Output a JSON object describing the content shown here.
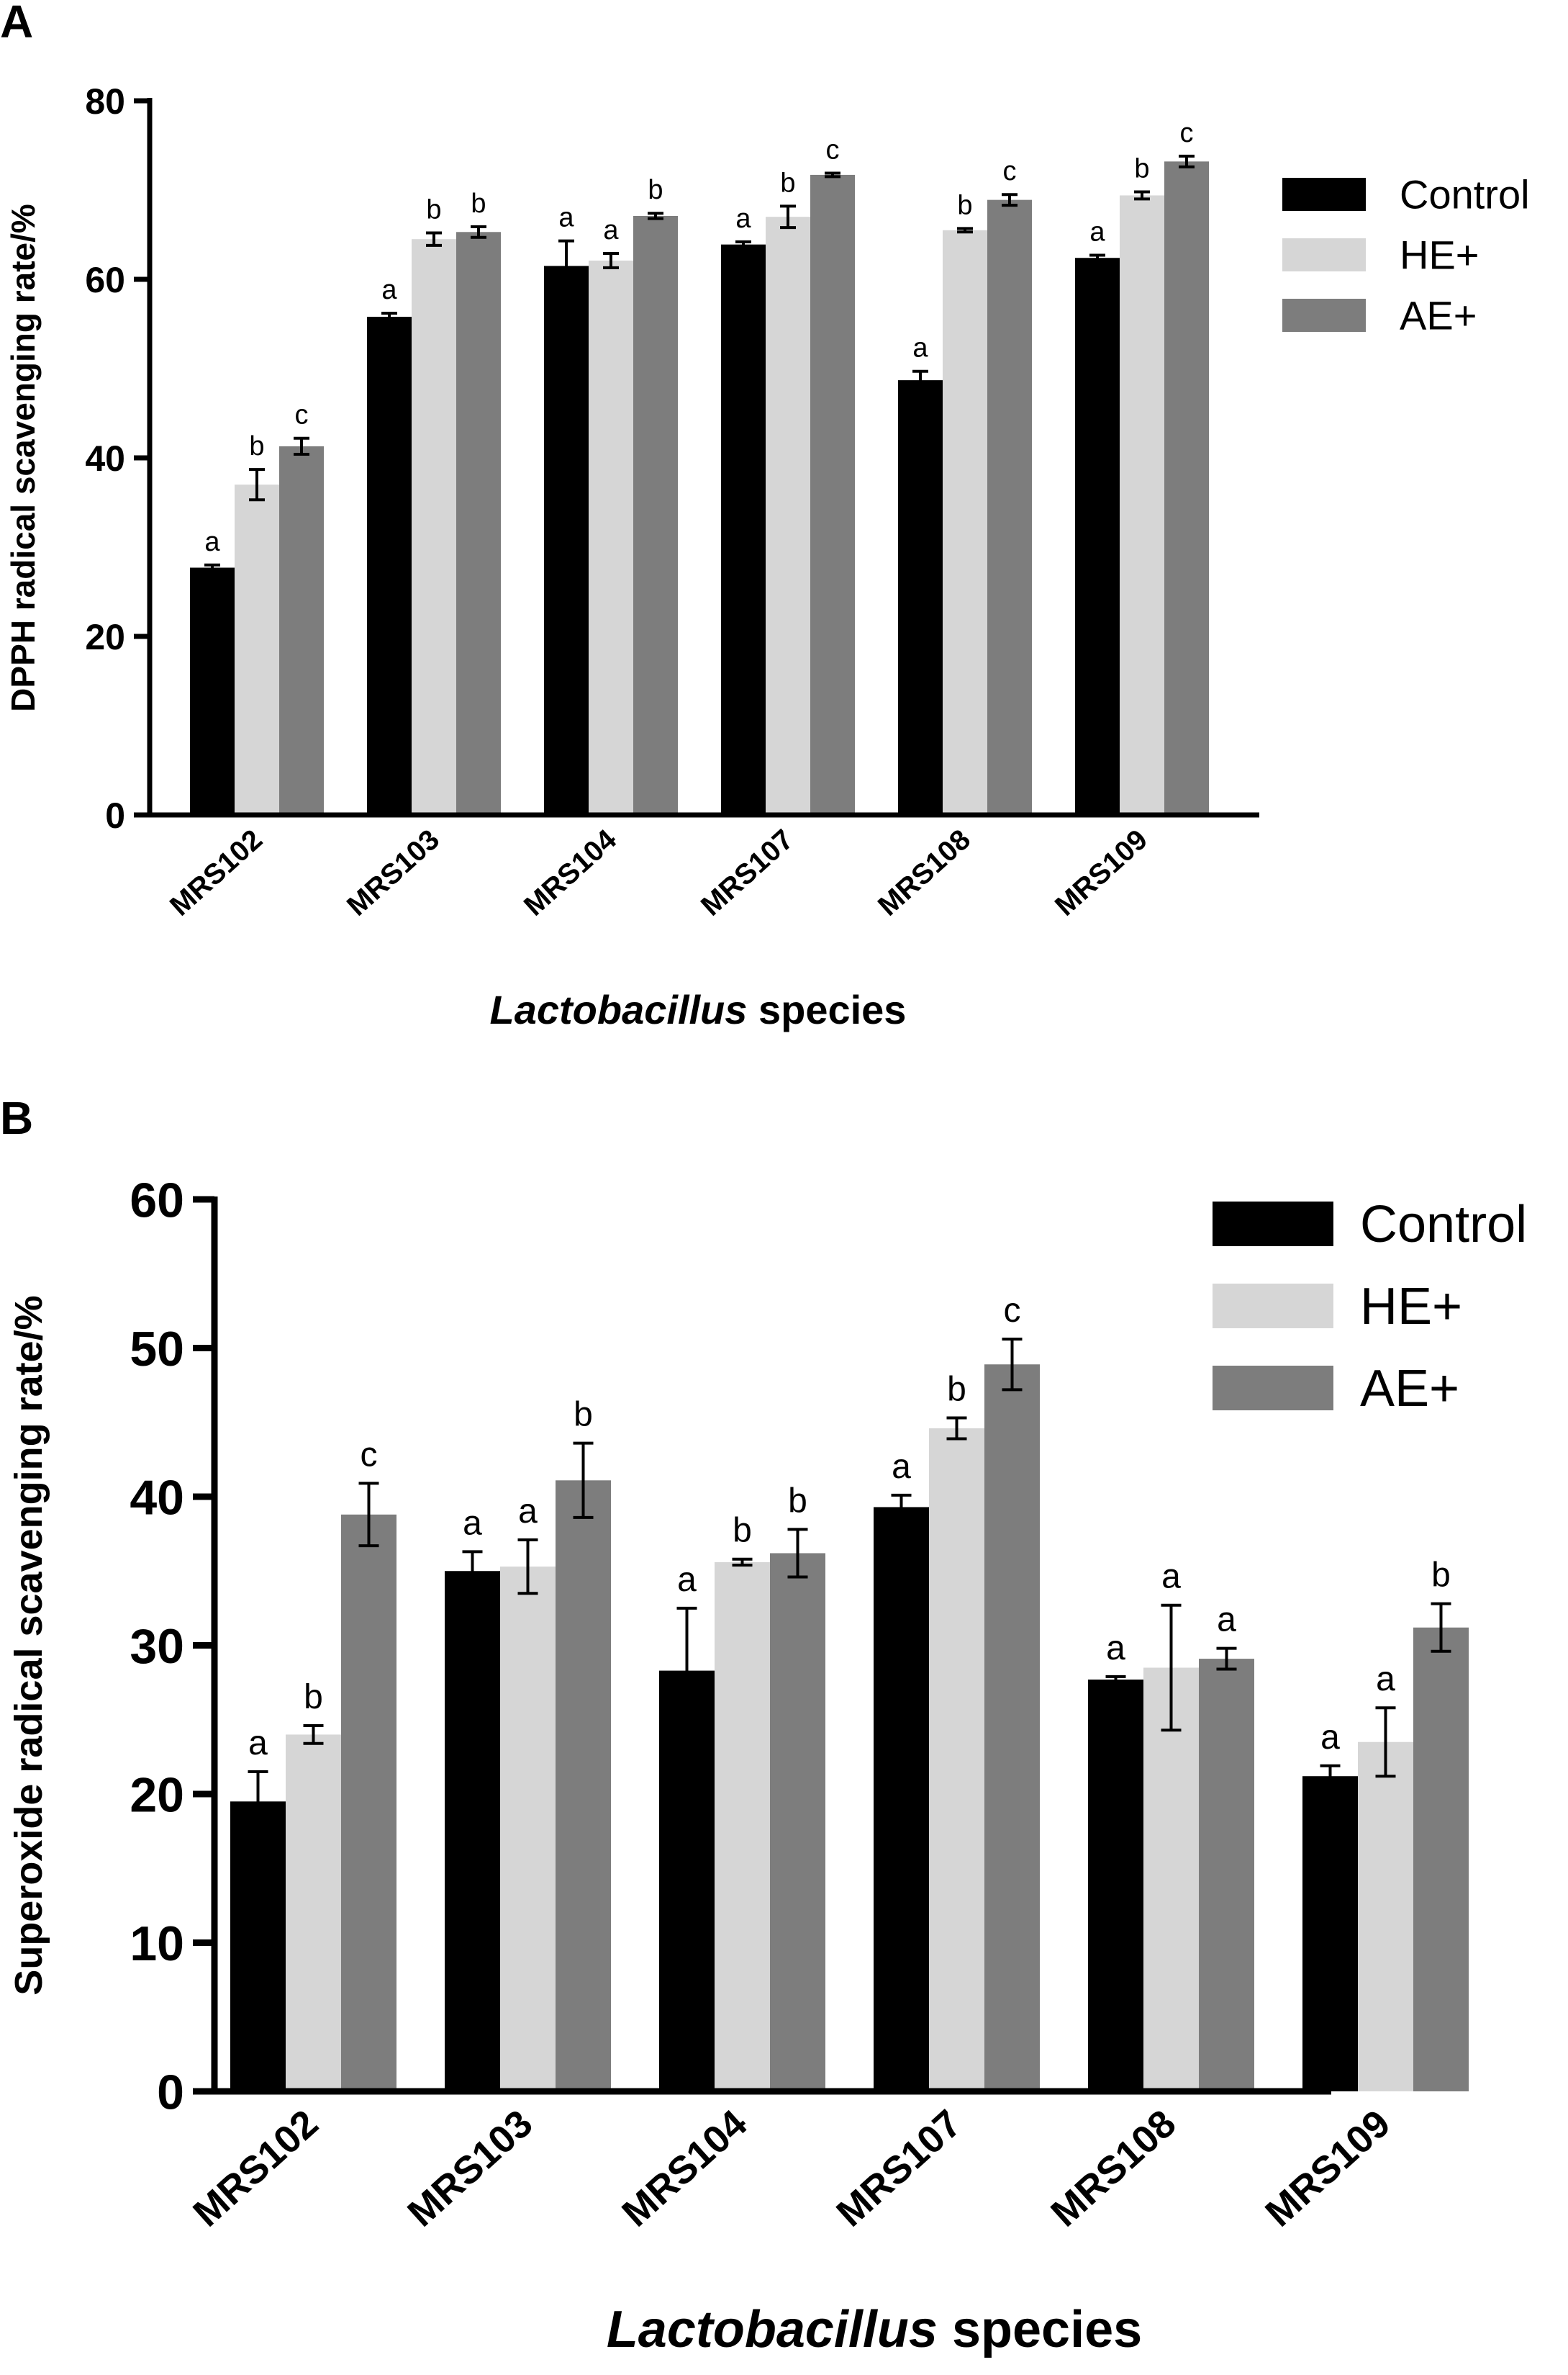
{
  "chart_data": [
    {
      "type": "bar",
      "panel_label": "A",
      "categories": [
        "MRS102",
        "MRS103",
        "MRS104",
        "MRS107",
        "MRS108",
        "MRS109"
      ],
      "series": [
        {
          "name": "Control",
          "color": "#000000",
          "values": [
            27.7,
            55.8,
            61.5,
            63.9,
            48.7,
            62.4
          ],
          "errors": [
            0.3,
            0.4,
            2.8,
            0.3,
            1.0,
            0.3
          ],
          "letters": [
            "a",
            "a",
            "a",
            "a",
            "a",
            "a"
          ]
        },
        {
          "name": "HE+",
          "color": "#d6d6d6",
          "values": [
            37.0,
            64.5,
            62.1,
            67.0,
            65.5,
            69.4
          ],
          "errors": [
            1.7,
            0.7,
            0.8,
            1.2,
            0.2,
            0.4
          ],
          "letters": [
            "b",
            "b",
            "a",
            "b",
            "b",
            "b"
          ]
        },
        {
          "name": "AE+",
          "color": "#7d7d7d",
          "values": [
            41.3,
            65.3,
            67.1,
            71.7,
            68.9,
            73.2
          ],
          "errors": [
            0.9,
            0.6,
            0.3,
            0.2,
            0.6,
            0.6
          ],
          "letters": [
            "c",
            "b",
            "b",
            "c",
            "c",
            "c"
          ]
        }
      ],
      "ylabel": "DPPH radical scavenging rate/%",
      "xlabel_italic": "Lactobacillus",
      "xlabel_rest": " species",
      "ylim": [
        0,
        80
      ],
      "yticks": [
        "0",
        "20",
        "40",
        "60",
        "80"
      ],
      "legend_position": "top-right",
      "grid": false
    },
    {
      "type": "bar",
      "panel_label": "B",
      "categories": [
        "MRS102",
        "MRS103",
        "MRS104",
        "MRS107",
        "MRS108",
        "MRS109"
      ],
      "series": [
        {
          "name": "Control",
          "color": "#000000",
          "values": [
            19.5,
            35.0,
            28.3,
            39.3,
            27.7,
            21.2
          ],
          "errors": [
            2.0,
            1.3,
            4.2,
            0.8,
            0.2,
            0.7
          ],
          "letters": [
            "a",
            "a",
            "a",
            "a",
            "a",
            "a"
          ]
        },
        {
          "name": "HE+",
          "color": "#d6d6d6",
          "values": [
            24.0,
            35.3,
            35.6,
            44.6,
            28.5,
            23.5
          ],
          "errors": [
            0.6,
            1.8,
            0.2,
            0.7,
            4.2,
            2.3
          ],
          "letters": [
            "b",
            "a",
            "b",
            "b",
            "a",
            "a"
          ]
        },
        {
          "name": "AE+",
          "color": "#7d7d7d",
          "values": [
            38.8,
            41.1,
            36.2,
            48.9,
            29.1,
            31.2
          ],
          "errors": [
            2.1,
            2.5,
            1.6,
            1.7,
            0.7,
            1.6
          ],
          "letters": [
            "c",
            "b",
            "b",
            "c",
            "a",
            "b"
          ]
        }
      ],
      "ylabel": "Superoxide radical scavenging rate/%",
      "xlabel_italic": "Lactobacillus",
      "xlabel_rest": " species",
      "ylim": [
        0,
        60
      ],
      "yticks": [
        "0",
        "10",
        "20",
        "30",
        "40",
        "50",
        "60"
      ],
      "legend_position": "top-right",
      "grid": false
    }
  ]
}
